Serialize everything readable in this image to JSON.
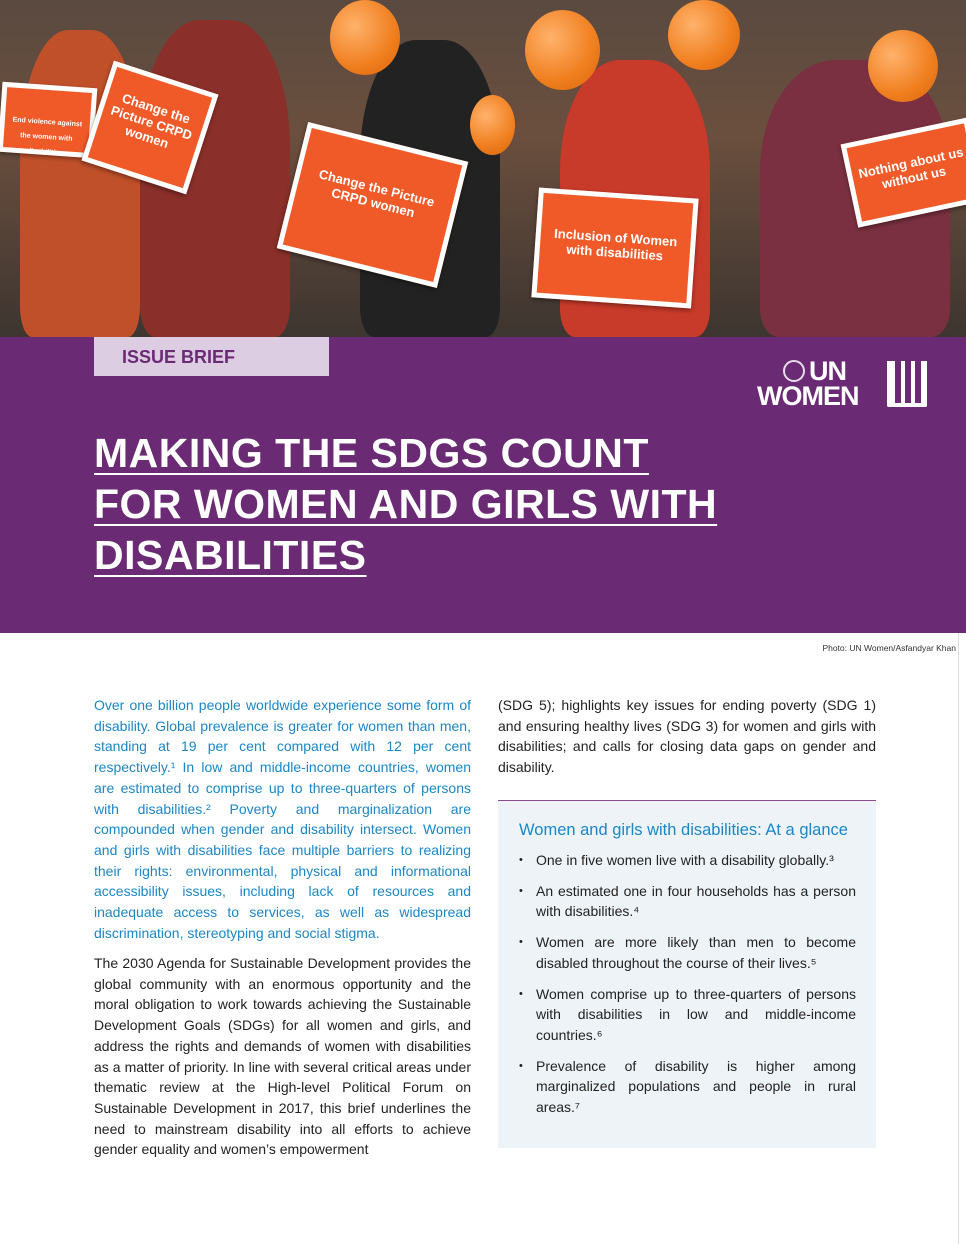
{
  "photo": {
    "placards": [
      "End violence against the women with disabilities",
      "Change the Picture CRPD women",
      "Change the Picture CRPD women",
      "Inclusion of Women with disabilities",
      "Nothing about us without us"
    ],
    "credit": "Photo: UN Women/Asfandyar Khan"
  },
  "header": {
    "tab_label": "ISSUE BRIEF",
    "logo": {
      "line1": "UN",
      "line2": "WOMEN"
    },
    "title_lines": [
      "MAKING THE SDGS COUNT",
      "FOR WOMEN AND GIRLS WITH",
      "DISABILITIES"
    ]
  },
  "colors": {
    "purple": "#6a2a74",
    "blue": "#1b87c6",
    "orange": "#f05a28"
  },
  "body": {
    "lead": "Over one billion people worldwide experience some form of disability. Global prevalence is greater for women than men, standing at 19 per cent compared with 12 per cent respectively.¹ In low and middle-income countries, women are estimated to comprise up to three-quarters of persons with disabilities.² Poverty and marginalization are compounded when gender and disability intersect. Women and girls with disabilities face multiple barriers to realizing their rights: environmental, physical and informational accessibility issues, including lack of resources and inadequate access to services, as well as widespread discrimination, stereotyping and social stigma.",
    "paragraph1": "The 2030 Agenda for Sustainable Development provides the global community with an enormous opportunity and the moral obligation to work towards achieving the Sustainable Development Goals (SDGs) for all women and girls, and address the rights and demands of women with disabilities as a matter of priority. In line with several critical areas under thematic review at the High-level Political Forum on Sustainable Development in 2017, this brief underlines the need to mainstream disability into all efforts to achieve gender equality and women’s empowerment",
    "paragraph2": "(SDG 5); highlights key issues for ending poverty (SDG 1) and ensuring healthy lives (SDG 3) for women and girls with disabilities; and calls for closing data gaps on gender and disability."
  },
  "glance": {
    "title": "Women and girls with disabilities: At a glance",
    "items": [
      "One in five women live with a disability globally.³",
      "An estimated one in four households has a person with disabilities.⁴",
      "Women are more likely than men to become disabled throughout the course of their lives.⁵",
      "Women comprise up to three-quarters of persons with disabilities in low and middle-income countries.⁶",
      "Prevalence of disability is higher among marginalized populations and people in rural areas.⁷"
    ]
  }
}
